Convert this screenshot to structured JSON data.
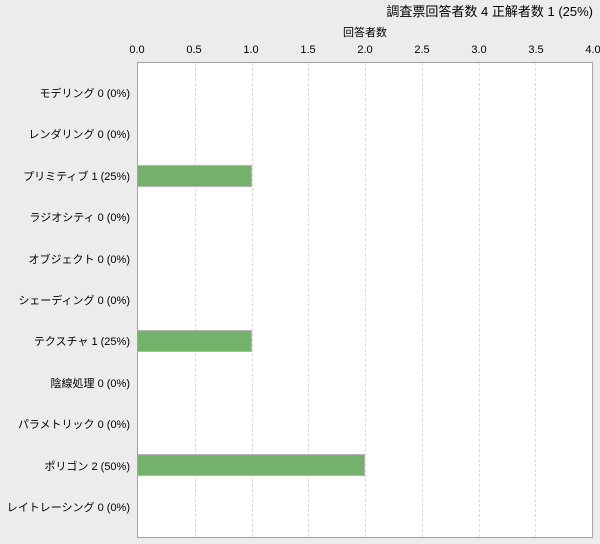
{
  "header": {
    "title": "調査票回答者数 4  正解者数 1 (25%)"
  },
  "chart_data": {
    "type": "bar",
    "orientation": "horizontal",
    "title": "調査票回答者数 4  正解者数 1 (25%)",
    "xlabel": "回答者数",
    "ylabel": "",
    "categories": [
      "モデリング",
      "レンダリング",
      "プリミティブ",
      "ラジオシティ",
      "オブジェクト",
      "シェーディング",
      "テクスチャ",
      "陰線処理",
      "パラメトリック",
      "ポリゴン",
      "レイトレーシング"
    ],
    "values": [
      0,
      0,
      1,
      0,
      0,
      0,
      1,
      0,
      0,
      2,
      0
    ],
    "row_labels": [
      "モデリング 0 (0%)",
      "レンダリング 0 (0%)",
      "プリミティブ 1 (25%)",
      "ラジオシティ 0 (0%)",
      "オブジェクト 0 (0%)",
      "シェーディング 0 (0%)",
      "テクスチャ 1 (25%)",
      "陰線処理 0 (0%)",
      "パラメトリック 0 (0%)",
      "ポリゴン 2 (50%)",
      "レイトレーシング 0 (0%)"
    ],
    "xlim": [
      0,
      4
    ],
    "xtick_labels": [
      "0.0",
      "0.5",
      "1.0",
      "1.5",
      "2.0",
      "2.5",
      "3.0",
      "3.5",
      "4.0"
    ],
    "grid": "vertical dashed lines at each 0.5",
    "legend": "none",
    "colors": {
      "page_bg": "#ececec",
      "plot_bg": "#ffffff",
      "plot_border": "#a3a3a3",
      "grid_line": "#d9d9d9",
      "bar_fill": "#74b26c",
      "bar_border": "#b4b4b4",
      "text": "#000000"
    }
  }
}
